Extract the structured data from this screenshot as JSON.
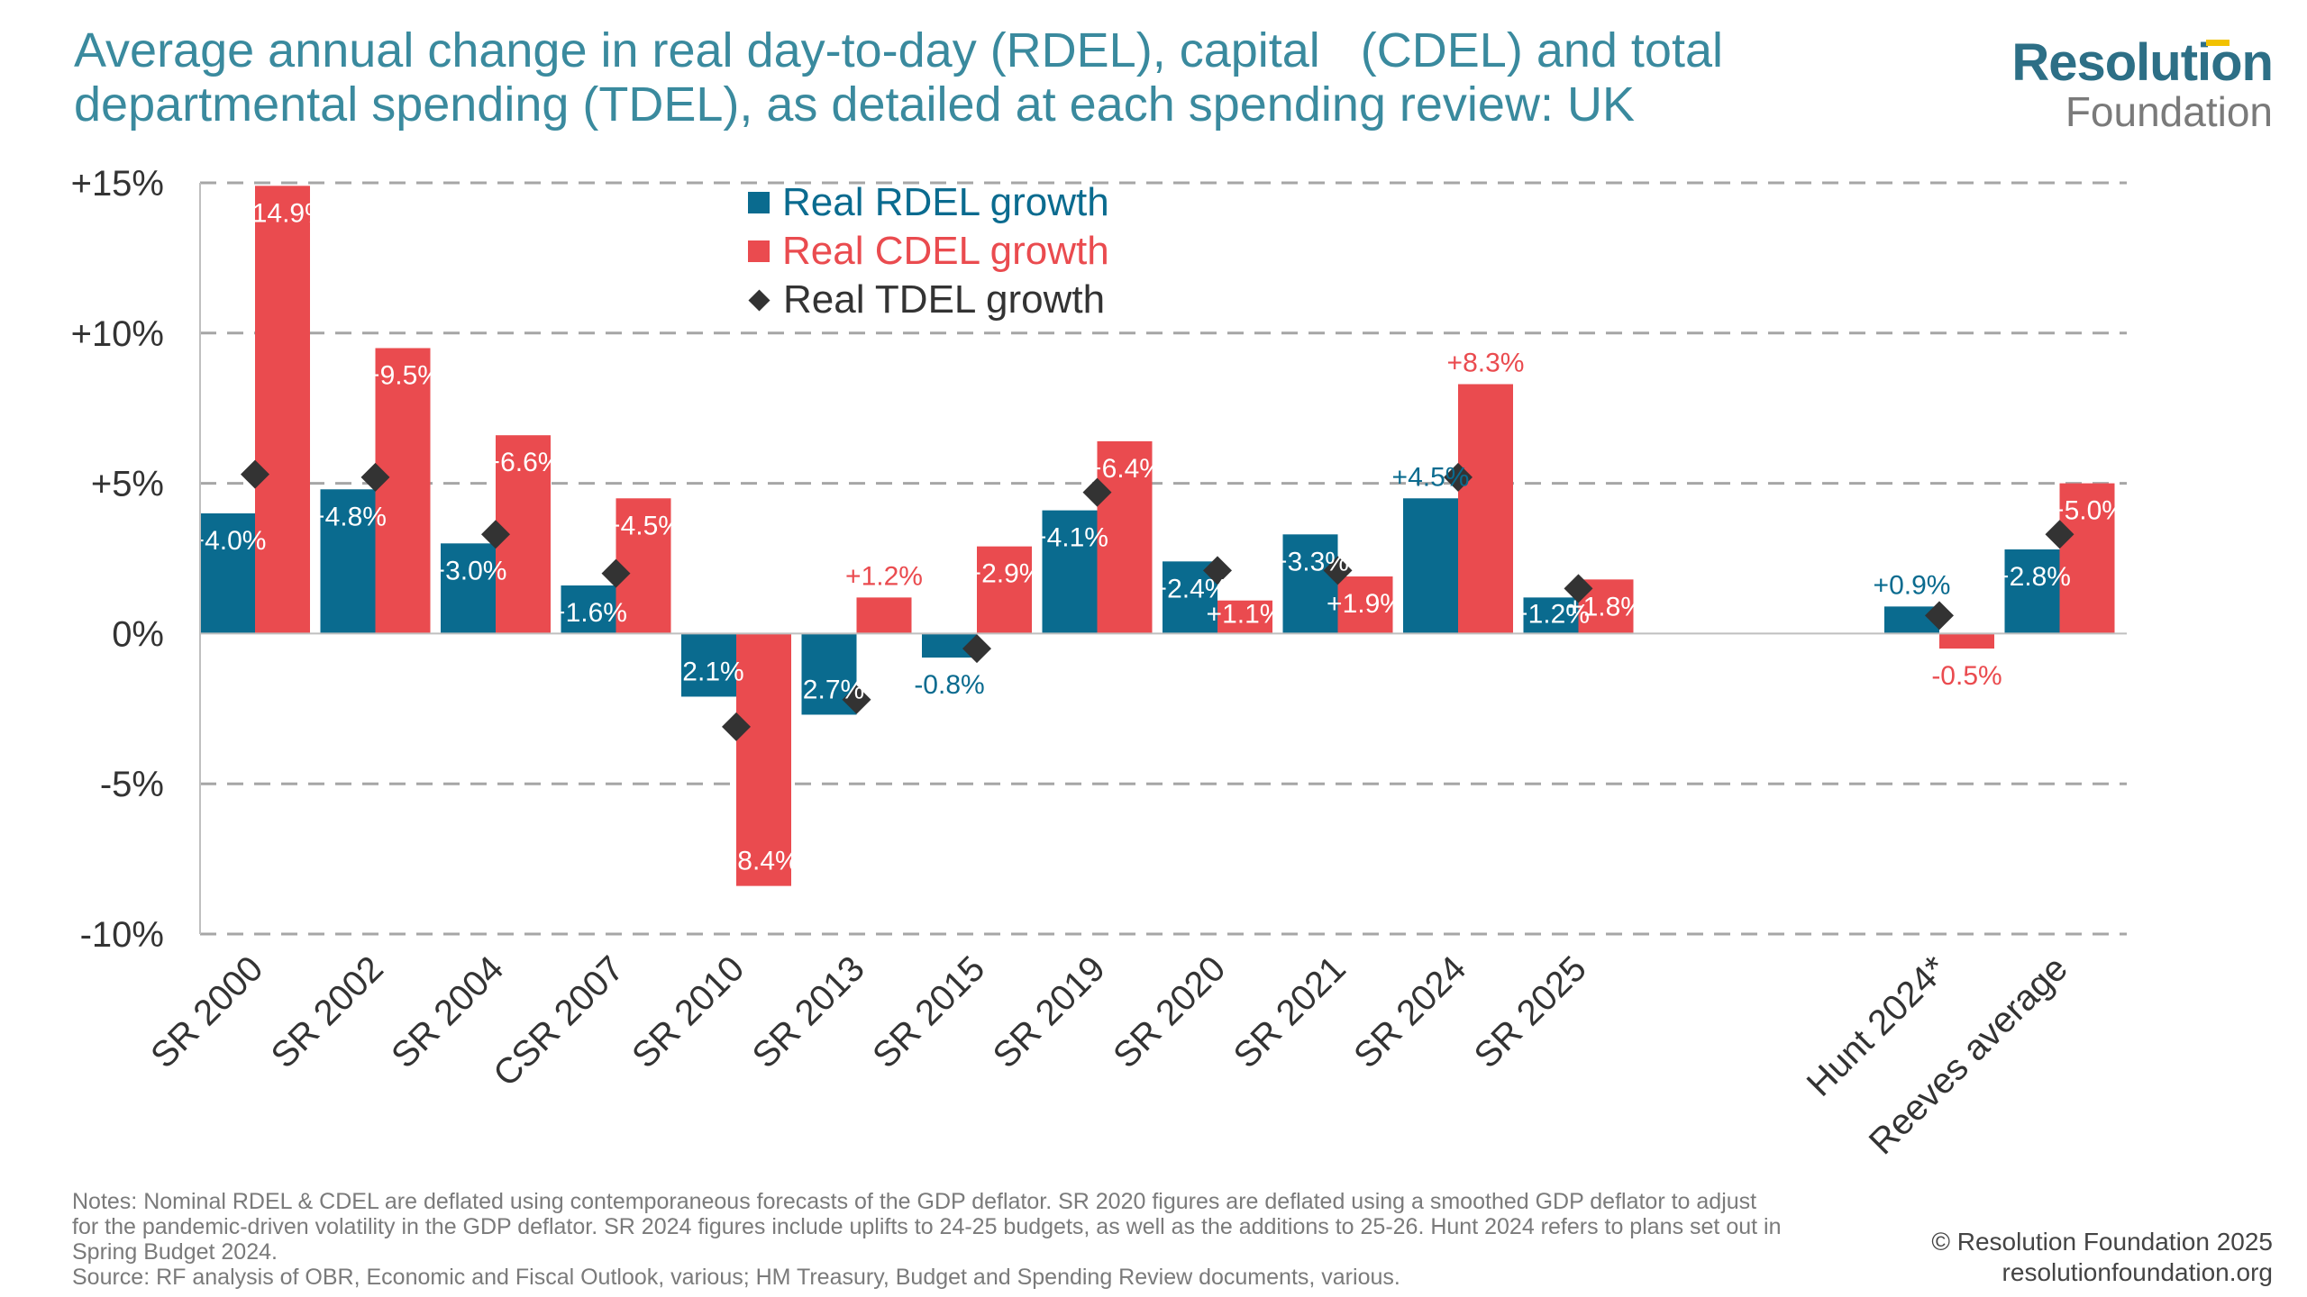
{
  "header": {
    "title_line1": "Average annual change in real day-to-day (RDEL), capital   (CDEL) and total",
    "title_line2": "departmental spending (TDEL), as detailed at each spending review: UK"
  },
  "logo": {
    "line1": "Resolution",
    "line2": "Foundation"
  },
  "legend": {
    "rdel": "Real RDEL growth",
    "cdel": "Real CDEL growth",
    "tdel": "Real TDEL growth"
  },
  "colors": {
    "rdel": "#0a6b8f",
    "cdel": "#ea4b4f",
    "tdel": "#333333",
    "title": "#3a8a9e",
    "grid": "#a6a6a6"
  },
  "chart_data": {
    "type": "bar",
    "categories": [
      "SR 2000",
      "SR 2002",
      "SR 2004",
      "CSR 2007",
      "SR 2010",
      "SR 2013",
      "SR 2015",
      "SR 2019",
      "SR 2020",
      "SR 2021",
      "SR 2024",
      "SR 2025",
      "",
      "",
      "Hunt 2024*",
      "Reeves average"
    ],
    "series": [
      {
        "name": "Real RDEL growth",
        "values": [
          4.0,
          4.8,
          3.0,
          1.6,
          -2.1,
          -2.7,
          -0.8,
          4.1,
          2.4,
          3.3,
          4.5,
          1.2,
          null,
          null,
          0.9,
          2.8
        ],
        "labels": [
          "+4.0%",
          "+4.8%",
          "+3.0%",
          "+1.6%",
          "-2.1%",
          "-2.7%",
          "-0.8%",
          "+4.1%",
          "+2.4%",
          "+3.3%",
          "+4.5%",
          "+1.2%",
          "",
          "",
          "+0.9%",
          "+2.8%"
        ]
      },
      {
        "name": "Real CDEL growth",
        "values": [
          14.9,
          9.5,
          6.6,
          4.5,
          -8.4,
          1.2,
          2.9,
          6.4,
          1.1,
          1.9,
          8.3,
          1.8,
          null,
          null,
          -0.5,
          5.0
        ],
        "labels": [
          "+14.9%",
          "+9.5%",
          "+6.6%",
          "+4.5%",
          "-8.4%",
          "+1.2%",
          "+2.9%",
          "+6.4%",
          "+1.1%",
          "+1.9%",
          "+8.3%",
          "+1.8%",
          "",
          "",
          "-0.5%",
          "+5.0%"
        ]
      },
      {
        "name": "Real TDEL growth",
        "values": [
          5.3,
          5.2,
          3.3,
          2.0,
          -3.1,
          -2.2,
          -0.5,
          4.7,
          2.1,
          2.1,
          5.2,
          1.5,
          null,
          null,
          0.6,
          3.3
        ]
      }
    ],
    "ylim": [
      -10,
      15
    ],
    "yticks": [
      15,
      10,
      5,
      0,
      -5,
      -10
    ],
    "ytick_labels": [
      "+15%",
      "+10%",
      "+5%",
      "0%",
      "-5%",
      "-10%"
    ],
    "grid": true,
    "legend_position": "top-center"
  },
  "footer": {
    "notes_line1": "Notes: Nominal RDEL & CDEL are deflated using contemporaneous forecasts of the GDP deflator. SR 2020 figures are deflated using a smoothed GDP deflator to adjust",
    "notes_line2": "for the pandemic-driven volatility in the GDP deflator. SR 2024 figures include uplifts to 24-25 budgets, as well as the additions to 25-26. Hunt 2024 refers to plans set out in",
    "notes_line3": "Spring Budget 2024.",
    "source": "Source: RF analysis of OBR, Economic and Fiscal Outlook, various; HM Treasury, Budget and Spending Review documents, various.",
    "copyright": "© Resolution Foundation 2025",
    "website": "resolutionfoundation.org"
  }
}
